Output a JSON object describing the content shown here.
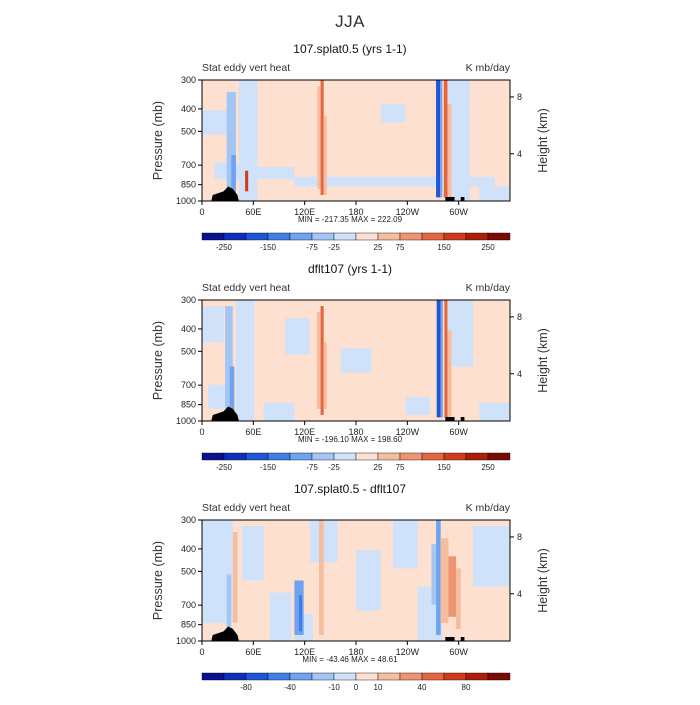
{
  "title": "JJA",
  "colorbar_colors": [
    "#08128f",
    "#0d2fbb",
    "#1f56d8",
    "#3f7ee6",
    "#6fa3ef",
    "#a3c6f5",
    "#cfe2fa",
    "#fde0cf",
    "#f6bc9e",
    "#ee9472",
    "#e2663f",
    "#d03b1c",
    "#ae1c0a",
    "#7b0a05"
  ],
  "land_color": "#000000",
  "chart_data": [
    {
      "type": "heatmap",
      "panel_title": "107.splat0.5 (yrs 1-1)",
      "variable_label": "Stat eddy vert heat",
      "units_label": "K mb/day",
      "ylabel": "Pressure (mb)",
      "ylabel_right": "Height (km)",
      "x_ticks": [
        "0",
        "60E",
        "120E",
        "180",
        "120W",
        "60W"
      ],
      "x_range": [
        0,
        360
      ],
      "y_ticks": [
        "300",
        "400",
        "500",
        "700",
        "850",
        "1000"
      ],
      "y_range": [
        300,
        1000
      ],
      "y_ticks_right": [
        "8",
        "4"
      ],
      "stats": "MIN = -217.35   MAX = 222.09",
      "colorbar_labels": [
        "-250",
        "-150",
        "-75",
        "-25",
        "25",
        "75",
        "150",
        "250"
      ]
    },
    {
      "type": "heatmap",
      "panel_title": "dflt107 (yrs 1-1)",
      "variable_label": "Stat eddy vert heat",
      "units_label": "K mb/day",
      "ylabel": "Pressure (mb)",
      "ylabel_right": "Height (km)",
      "x_ticks": [
        "0",
        "60E",
        "120E",
        "180",
        "120W",
        "60W"
      ],
      "x_range": [
        0,
        360
      ],
      "y_ticks": [
        "300",
        "400",
        "500",
        "700",
        "850",
        "1000"
      ],
      "y_range": [
        300,
        1000
      ],
      "y_ticks_right": [
        "8",
        "4"
      ],
      "stats": "MIN = -196.10   MAX = 198.60",
      "colorbar_labels": [
        "-250",
        "-150",
        "-75",
        "-25",
        "25",
        "75",
        "150",
        "250"
      ]
    },
    {
      "type": "heatmap",
      "panel_title": "107.splat0.5 - dflt107",
      "variable_label": "Stat eddy vert heat",
      "units_label": "K mb/day",
      "ylabel": "Pressure (mb)",
      "ylabel_right": "Height (km)",
      "x_ticks": [
        "0",
        "60E",
        "120E",
        "180",
        "120W",
        "60W"
      ],
      "x_range": [
        0,
        360
      ],
      "y_ticks": [
        "300",
        "400",
        "500",
        "700",
        "850",
        "1000"
      ],
      "y_range": [
        300,
        1000
      ],
      "y_ticks_right": [
        "8",
        "4"
      ],
      "stats": "MIN = -43.46   MAX = 48.61",
      "colorbar_labels": [
        "-80",
        "-40",
        "-10",
        "0",
        "10",
        "40",
        "80"
      ]
    }
  ]
}
